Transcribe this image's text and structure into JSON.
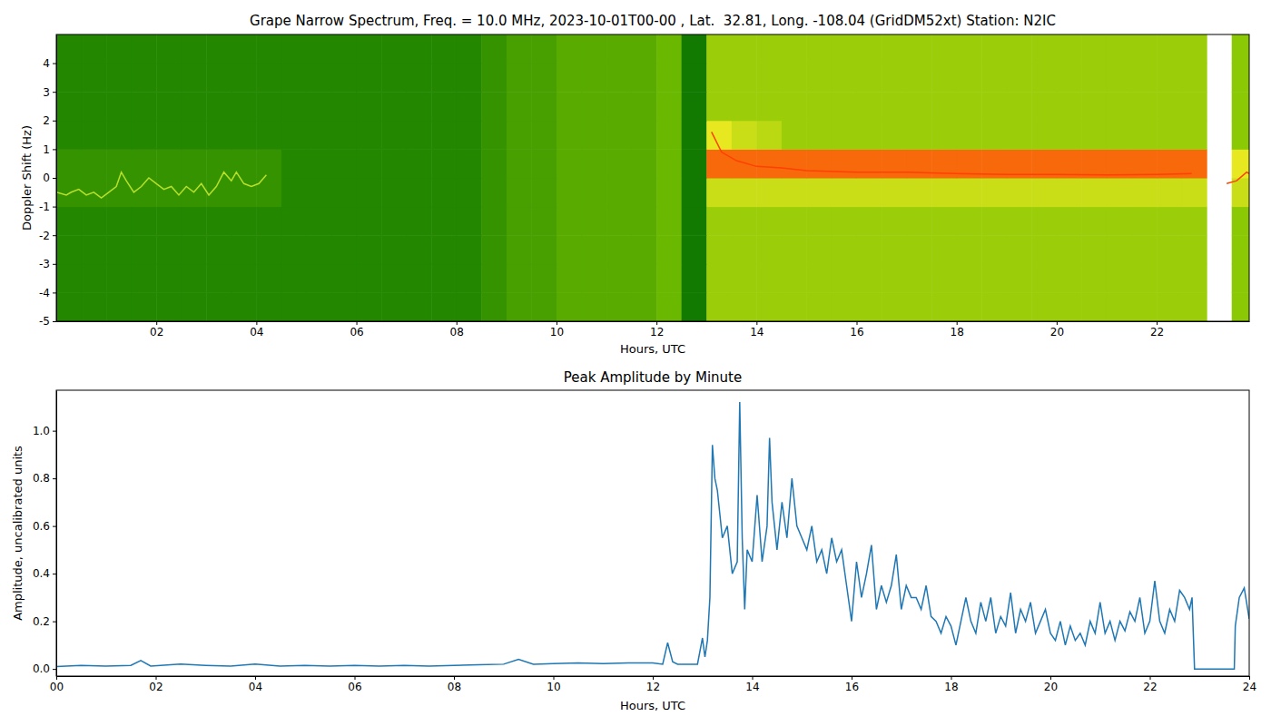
{
  "chart_data": [
    {
      "type": "heatmap",
      "title": "Grape Narrow Spectrum, Freq. = 10.0 MHz, 2023-10-01T00-00 , Lat.  32.81, Long. -108.04 (GridDM52xt) Station: N2IC",
      "xlabel": "Hours, UTC",
      "ylabel": "Doppler Shift (Hz)",
      "xlim": [
        0,
        23.85
      ],
      "xticks": [
        {
          "value": 2,
          "label": "02"
        },
        {
          "value": 4,
          "label": "04"
        },
        {
          "value": 6,
          "label": "06"
        },
        {
          "value": 8,
          "label": "08"
        },
        {
          "value": 10,
          "label": "10"
        },
        {
          "value": 12,
          "label": "12"
        },
        {
          "value": 14,
          "label": "14"
        },
        {
          "value": 16,
          "label": "16"
        },
        {
          "value": 18,
          "label": "18"
        },
        {
          "value": 20,
          "label": "20"
        },
        {
          "value": 22,
          "label": "22"
        }
      ],
      "ylim": [
        -5,
        5
      ],
      "yticks": [
        -5,
        -4,
        -3,
        -2,
        -1,
        0,
        1,
        2,
        3,
        4
      ],
      "x_bins": [
        0,
        0.5,
        1,
        1.5,
        2,
        2.5,
        3,
        3.5,
        4,
        4.5,
        5,
        5.5,
        6,
        6.5,
        7,
        7.5,
        8,
        8.5,
        9,
        9.5,
        10,
        10.5,
        11,
        11.5,
        12,
        12.5,
        13,
        13.5,
        14,
        14.5,
        15,
        15.5,
        16,
        16.5,
        17,
        17.5,
        18,
        18.5,
        19,
        19.5,
        20,
        20.5,
        21,
        21.5,
        22,
        22.5,
        23,
        23.5,
        24
      ],
      "y_bins": [
        -5,
        -4,
        -3,
        -2,
        -1,
        0,
        1,
        2,
        3,
        4,
        5
      ],
      "zlim": [
        0,
        1
      ],
      "z": [
        [
          0.1,
          0.1,
          0.1,
          0.1,
          0.1,
          0.1,
          0.1,
          0.1,
          0.1,
          0.1,
          0.1,
          0.1,
          0.1,
          0.1,
          0.1,
          0.1,
          0.1,
          0.15,
          0.2,
          0.2,
          0.25,
          0.25,
          0.25,
          0.25,
          0.3,
          0.05,
          0.45,
          0.45,
          0.45,
          0.45,
          0.45,
          0.45,
          0.45,
          0.45,
          0.45,
          0.45,
          0.45,
          0.45,
          0.45,
          0.45,
          0.45,
          0.45,
          0.45,
          0.45,
          0.45,
          0.45,
          null,
          0.4
        ],
        [
          0.1,
          0.1,
          0.1,
          0.1,
          0.1,
          0.1,
          0.1,
          0.1,
          0.1,
          0.1,
          0.1,
          0.1,
          0.1,
          0.1,
          0.1,
          0.1,
          0.1,
          0.15,
          0.2,
          0.2,
          0.25,
          0.25,
          0.25,
          0.25,
          0.3,
          0.05,
          0.45,
          0.45,
          0.45,
          0.45,
          0.45,
          0.45,
          0.45,
          0.45,
          0.45,
          0.45,
          0.45,
          0.45,
          0.45,
          0.45,
          0.45,
          0.45,
          0.45,
          0.45,
          0.45,
          0.45,
          null,
          0.4
        ],
        [
          0.1,
          0.1,
          0.1,
          0.1,
          0.1,
          0.1,
          0.1,
          0.1,
          0.1,
          0.1,
          0.1,
          0.1,
          0.1,
          0.1,
          0.1,
          0.1,
          0.1,
          0.15,
          0.2,
          0.2,
          0.25,
          0.25,
          0.25,
          0.25,
          0.3,
          0.05,
          0.45,
          0.45,
          0.45,
          0.45,
          0.45,
          0.45,
          0.45,
          0.45,
          0.45,
          0.45,
          0.45,
          0.45,
          0.45,
          0.45,
          0.45,
          0.45,
          0.45,
          0.45,
          0.45,
          0.45,
          null,
          0.4
        ],
        [
          0.1,
          0.1,
          0.1,
          0.1,
          0.1,
          0.1,
          0.1,
          0.1,
          0.1,
          0.1,
          0.1,
          0.1,
          0.1,
          0.1,
          0.1,
          0.1,
          0.1,
          0.15,
          0.2,
          0.2,
          0.25,
          0.25,
          0.25,
          0.25,
          0.3,
          0.05,
          0.45,
          0.45,
          0.45,
          0.45,
          0.45,
          0.45,
          0.45,
          0.45,
          0.45,
          0.45,
          0.45,
          0.45,
          0.45,
          0.45,
          0.45,
          0.45,
          0.45,
          0.45,
          0.45,
          0.45,
          null,
          0.4
        ],
        [
          0.15,
          0.15,
          0.15,
          0.15,
          0.15,
          0.15,
          0.15,
          0.15,
          0.15,
          0.1,
          0.1,
          0.1,
          0.1,
          0.1,
          0.1,
          0.1,
          0.1,
          0.15,
          0.2,
          0.2,
          0.25,
          0.25,
          0.25,
          0.25,
          0.3,
          0.05,
          0.6,
          0.6,
          0.6,
          0.6,
          0.6,
          0.6,
          0.6,
          0.6,
          0.6,
          0.6,
          0.6,
          0.6,
          0.6,
          0.6,
          0.6,
          0.6,
          0.6,
          0.6,
          0.6,
          0.6,
          null,
          0.6
        ],
        [
          0.15,
          0.15,
          0.15,
          0.15,
          0.15,
          0.15,
          0.15,
          0.15,
          0.15,
          0.1,
          0.1,
          0.1,
          0.1,
          0.1,
          0.1,
          0.1,
          0.1,
          0.15,
          0.2,
          0.2,
          0.25,
          0.25,
          0.25,
          0.25,
          0.3,
          0.05,
          0.9,
          0.9,
          0.9,
          0.9,
          0.9,
          0.9,
          0.9,
          0.9,
          0.9,
          0.9,
          0.9,
          0.9,
          0.9,
          0.9,
          0.9,
          0.9,
          0.9,
          0.9,
          0.9,
          0.9,
          null,
          0.7
        ],
        [
          0.1,
          0.1,
          0.1,
          0.1,
          0.1,
          0.1,
          0.1,
          0.1,
          0.1,
          0.1,
          0.1,
          0.1,
          0.1,
          0.1,
          0.1,
          0.1,
          0.1,
          0.15,
          0.2,
          0.2,
          0.25,
          0.25,
          0.25,
          0.25,
          0.3,
          0.05,
          0.7,
          0.6,
          0.55,
          0.45,
          0.45,
          0.45,
          0.45,
          0.45,
          0.45,
          0.45,
          0.45,
          0.45,
          0.45,
          0.45,
          0.45,
          0.45,
          0.45,
          0.45,
          0.45,
          0.45,
          null,
          0.4
        ],
        [
          0.1,
          0.1,
          0.1,
          0.1,
          0.1,
          0.1,
          0.1,
          0.1,
          0.1,
          0.1,
          0.1,
          0.1,
          0.1,
          0.1,
          0.1,
          0.1,
          0.1,
          0.15,
          0.2,
          0.2,
          0.25,
          0.25,
          0.25,
          0.25,
          0.3,
          0.05,
          0.45,
          0.45,
          0.45,
          0.45,
          0.45,
          0.45,
          0.45,
          0.45,
          0.45,
          0.45,
          0.45,
          0.45,
          0.45,
          0.45,
          0.45,
          0.45,
          0.45,
          0.45,
          0.45,
          0.45,
          null,
          0.4
        ],
        [
          0.1,
          0.1,
          0.1,
          0.1,
          0.1,
          0.1,
          0.1,
          0.1,
          0.1,
          0.1,
          0.1,
          0.1,
          0.1,
          0.1,
          0.1,
          0.1,
          0.1,
          0.15,
          0.2,
          0.2,
          0.25,
          0.25,
          0.25,
          0.25,
          0.3,
          0.05,
          0.45,
          0.45,
          0.45,
          0.45,
          0.45,
          0.45,
          0.45,
          0.45,
          0.45,
          0.45,
          0.45,
          0.45,
          0.45,
          0.45,
          0.45,
          0.45,
          0.45,
          0.45,
          0.45,
          0.45,
          null,
          0.4
        ],
        [
          0.1,
          0.1,
          0.1,
          0.1,
          0.1,
          0.1,
          0.1,
          0.1,
          0.1,
          0.1,
          0.1,
          0.1,
          0.1,
          0.1,
          0.1,
          0.1,
          0.1,
          0.15,
          0.2,
          0.2,
          0.25,
          0.25,
          0.25,
          0.25,
          0.3,
          0.05,
          0.45,
          0.45,
          0.45,
          0.45,
          0.45,
          0.45,
          0.45,
          0.45,
          0.45,
          0.45,
          0.45,
          0.45,
          0.45,
          0.45,
          0.45,
          0.45,
          0.45,
          0.45,
          0.45,
          0.45,
          null,
          0.4
        ]
      ],
      "series": [
        {
          "type": "line",
          "color": "#b8e02a",
          "x": [
            0,
            0.2,
            0.3,
            0.45,
            0.6,
            0.75,
            0.9,
            1.05,
            1.2,
            1.3,
            1.4,
            1.55,
            1.7,
            1.85,
            2,
            2.15,
            2.3,
            2.45,
            2.6,
            2.75,
            2.9,
            3.05,
            3.2,
            3.35,
            3.5,
            3.6,
            3.75,
            3.9,
            4.05,
            4.2
          ],
          "values": [
            -0.5,
            -0.6,
            -0.5,
            -0.4,
            -0.6,
            -0.5,
            -0.7,
            -0.5,
            -0.3,
            0.2,
            -0.1,
            -0.5,
            -0.3,
            0,
            -0.2,
            -0.4,
            -0.3,
            -0.6,
            -0.3,
            -0.5,
            -0.2,
            -0.6,
            -0.3,
            0.2,
            -0.1,
            0.2,
            -0.2,
            -0.3,
            -0.2,
            0.1
          ]
        },
        {
          "type": "line",
          "color": "#ff4000",
          "x": [
            13.1,
            13.3,
            13.6,
            14,
            14.5,
            15,
            16,
            17,
            18,
            19,
            20,
            21,
            22,
            22.7,
            22.8,
            23.4,
            23.6,
            23.8,
            23.85
          ],
          "values": [
            1.6,
            0.9,
            0.6,
            0.4,
            0.35,
            0.25,
            0.2,
            0.2,
            0.15,
            0.12,
            0.12,
            0.1,
            0.12,
            0.15,
            null,
            -0.2,
            -0.1,
            0.2,
            0.15
          ]
        }
      ]
    },
    {
      "type": "line",
      "title": "Peak Amplitude by Minute",
      "xlabel": "Hours, UTC",
      "ylabel": "Amplitude, uncalibrated units",
      "xlim": [
        0,
        24
      ],
      "xticks": [
        {
          "value": 0,
          "label": "00"
        },
        {
          "value": 2,
          "label": "02"
        },
        {
          "value": 4,
          "label": "04"
        },
        {
          "value": 6,
          "label": "06"
        },
        {
          "value": 8,
          "label": "08"
        },
        {
          "value": 10,
          "label": "10"
        },
        {
          "value": 12,
          "label": "12"
        },
        {
          "value": 14,
          "label": "14"
        },
        {
          "value": 16,
          "label": "16"
        },
        {
          "value": 18,
          "label": "18"
        },
        {
          "value": 20,
          "label": "20"
        },
        {
          "value": 22,
          "label": "22"
        },
        {
          "value": 24,
          "label": "24"
        }
      ],
      "ylim": [
        -0.03,
        1.17
      ],
      "yticks": [
        {
          "value": 0,
          "label": "0.0"
        },
        {
          "value": 0.2,
          "label": "0.2"
        },
        {
          "value": 0.4,
          "label": "0.4"
        },
        {
          "value": 0.6,
          "label": "0.6"
        },
        {
          "value": 0.8,
          "label": "0.8"
        },
        {
          "value": 1,
          "label": "1.0"
        }
      ],
      "color": "#1f77b4",
      "x": [
        0,
        0.5,
        1,
        1.5,
        1.7,
        1.9,
        2.5,
        3,
        3.5,
        4,
        4.5,
        5,
        5.5,
        6,
        6.5,
        7,
        7.5,
        8,
        8.5,
        9,
        9.3,
        9.6,
        10,
        10.5,
        11,
        11.5,
        12,
        12.2,
        12.3,
        12.4,
        12.5,
        12.9,
        13,
        13.05,
        13.1,
        13.15,
        13.2,
        13.25,
        13.3,
        13.4,
        13.5,
        13.6,
        13.7,
        13.75,
        13.8,
        13.85,
        13.9,
        14,
        14.1,
        14.2,
        14.3,
        14.35,
        14.4,
        14.5,
        14.6,
        14.7,
        14.8,
        14.9,
        15,
        15.1,
        15.2,
        15.3,
        15.4,
        15.5,
        15.6,
        15.7,
        15.8,
        15.9,
        16,
        16.1,
        16.2,
        16.3,
        16.4,
        16.5,
        16.6,
        16.7,
        16.8,
        16.9,
        17,
        17.1,
        17.2,
        17.3,
        17.4,
        17.5,
        17.6,
        17.7,
        17.8,
        17.9,
        18,
        18.1,
        18.2,
        18.3,
        18.4,
        18.5,
        18.6,
        18.7,
        18.8,
        18.9,
        19,
        19.1,
        19.2,
        19.3,
        19.4,
        19.5,
        19.6,
        19.7,
        19.8,
        19.9,
        20,
        20.1,
        20.2,
        20.3,
        20.4,
        20.5,
        20.6,
        20.7,
        20.8,
        20.9,
        21,
        21.1,
        21.2,
        21.3,
        21.4,
        21.5,
        21.6,
        21.7,
        21.8,
        21.9,
        22,
        22.1,
        22.2,
        22.3,
        22.4,
        22.5,
        22.6,
        22.7,
        22.8,
        22.85,
        22.9,
        23,
        23.7,
        23.72,
        23.8,
        23.9,
        24
      ],
      "values": [
        0.01,
        0.015,
        0.012,
        0.015,
        0.035,
        0.012,
        0.02,
        0.015,
        0.012,
        0.02,
        0.012,
        0.015,
        0.012,
        0.015,
        0.012,
        0.015,
        0.012,
        0.015,
        0.018,
        0.02,
        0.04,
        0.02,
        0.022,
        0.025,
        0.022,
        0.025,
        0.025,
        0.02,
        0.11,
        0.03,
        0.02,
        0.02,
        0.13,
        0.05,
        0.12,
        0.3,
        0.94,
        0.8,
        0.75,
        0.55,
        0.6,
        0.4,
        0.45,
        1.12,
        0.55,
        0.25,
        0.5,
        0.45,
        0.73,
        0.45,
        0.6,
        0.97,
        0.7,
        0.5,
        0.7,
        0.55,
        0.8,
        0.6,
        0.55,
        0.5,
        0.6,
        0.45,
        0.5,
        0.4,
        0.55,
        0.45,
        0.5,
        0.35,
        0.2,
        0.45,
        0.3,
        0.4,
        0.52,
        0.25,
        0.35,
        0.28,
        0.35,
        0.48,
        0.25,
        0.35,
        0.3,
        0.3,
        0.25,
        0.35,
        0.22,
        0.2,
        0.15,
        0.22,
        0.18,
        0.1,
        0.2,
        0.3,
        0.2,
        0.15,
        0.28,
        0.2,
        0.3,
        0.15,
        0.22,
        0.18,
        0.32,
        0.15,
        0.25,
        0.2,
        0.28,
        0.15,
        0.2,
        0.25,
        0.15,
        0.12,
        0.2,
        0.1,
        0.18,
        0.12,
        0.15,
        0.1,
        0.2,
        0.15,
        0.28,
        0.15,
        0.2,
        0.12,
        0.2,
        0.16,
        0.24,
        0.2,
        0.3,
        0.15,
        0.2,
        0.37,
        0.2,
        0.15,
        0.25,
        0.2,
        0.33,
        0.3,
        0.25,
        0.3,
        0,
        0,
        0,
        0.18,
        0.3,
        0.34,
        0.21
      ]
    }
  ]
}
